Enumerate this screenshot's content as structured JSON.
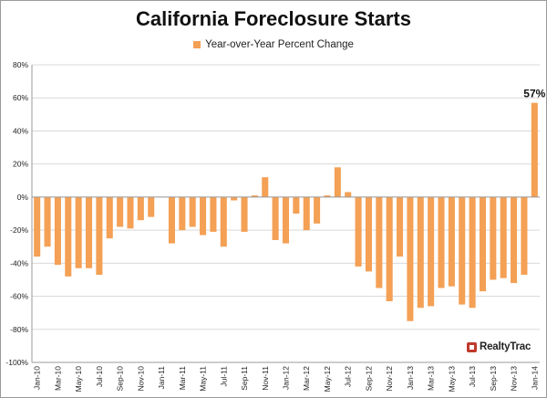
{
  "colors": {
    "bar": "#f4a055",
    "grid": "#d9d9d9",
    "axis": "#9a9a9a",
    "logo": "#c0392b"
  },
  "legend": {
    "label": "Year-over-Year Percent Change"
  },
  "logo": {
    "text": "RealtyTrac"
  },
  "chart_data": {
    "type": "bar",
    "title": "California Foreclosure Starts",
    "xlabel": "",
    "ylabel": "",
    "ylim": [
      -100,
      80
    ],
    "yticks": [
      80,
      60,
      40,
      20,
      0,
      -20,
      -40,
      -60,
      -80,
      -100
    ],
    "ytick_labels": [
      "80%",
      "60%",
      "40%",
      "20%",
      "0%",
      "-20%",
      "-40%",
      "-60%",
      "-80%",
      "-100%"
    ],
    "gridlines": true,
    "legend_position": "top-center",
    "categories": [
      "Jan-10",
      "Feb-10",
      "Mar-10",
      "Apr-10",
      "May-10",
      "Jun-10",
      "Jul-10",
      "Aug-10",
      "Sep-10",
      "Oct-10",
      "Nov-10",
      "Dec-10",
      "Jan-11",
      "Feb-11",
      "Mar-11",
      "Apr-11",
      "May-11",
      "Jun-11",
      "Jul-11",
      "Aug-11",
      "Sep-11",
      "Oct-11",
      "Nov-11",
      "Dec-11",
      "Jan-12",
      "Feb-12",
      "Mar-12",
      "Apr-12",
      "May-12",
      "Jun-12",
      "Jul-12",
      "Aug-12",
      "Sep-12",
      "Oct-12",
      "Nov-12",
      "Dec-12",
      "Jan-13",
      "Feb-13",
      "Mar-13",
      "Apr-13",
      "May-13",
      "Jun-13",
      "Jul-13",
      "Aug-13",
      "Sep-13",
      "Oct-13",
      "Nov-13",
      "Dec-13",
      "Jan-14"
    ],
    "visible_tick_labels": [
      "Jan-10",
      "Mar-10",
      "May-10",
      "Jul-10",
      "Sep-10",
      "Nov-10",
      "Jan-11",
      "Mar-11",
      "May-11",
      "Jul-11",
      "Sep-11",
      "Nov-11",
      "Jan-12",
      "Mar-12",
      "May-12",
      "Jul-12",
      "Sep-12",
      "Nov-12",
      "Jan-13",
      "Mar-13",
      "May-13",
      "Jul-13",
      "Sep-13",
      "Nov-13",
      "Jan-14"
    ],
    "series": [
      {
        "name": "Year-over-Year Percent Change",
        "values": [
          -36,
          -30,
          -41,
          -48,
          -43,
          -43,
          -47,
          -25,
          -18,
          -19,
          -14,
          -12,
          null,
          -28,
          -20,
          -18,
          -23,
          -21,
          -30,
          -2,
          -21,
          1,
          12,
          -26,
          -28,
          -10,
          -20,
          -16,
          1,
          18,
          3,
          -42,
          -45,
          -55,
          -63,
          -36,
          -75,
          -67,
          -66,
          -55,
          -54,
          -65,
          -67,
          -57,
          -50,
          -49,
          -52,
          -47,
          57
        ]
      }
    ],
    "annotations": [
      {
        "category": "Jan-14",
        "label": "57%"
      }
    ]
  }
}
